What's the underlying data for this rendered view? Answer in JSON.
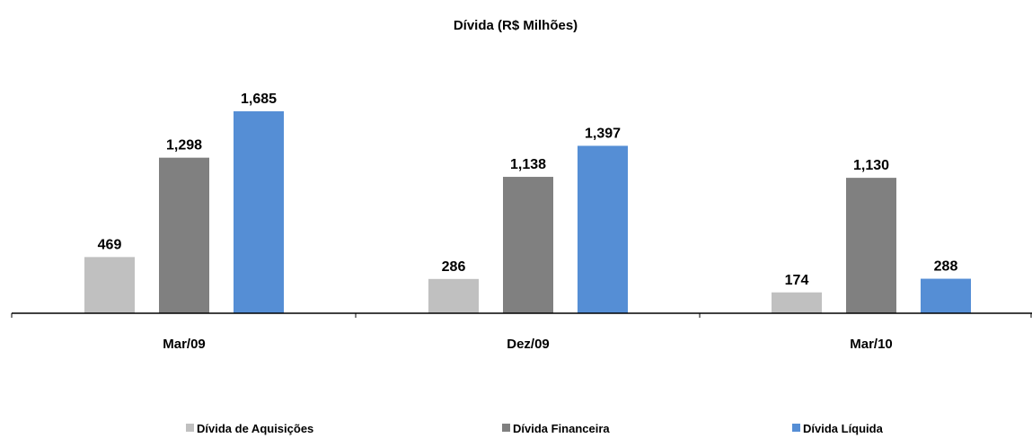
{
  "chart_data": {
    "type": "bar",
    "title": "Dívida (R$ Milhões)",
    "categories": [
      "Mar/09",
      "Dez/09",
      "Mar/10"
    ],
    "series": [
      {
        "name": "Dívida de Aquisições",
        "values": [
          469,
          286,
          174
        ],
        "labels": [
          "469",
          "286",
          "174"
        ],
        "color": "#c0c0c0"
      },
      {
        "name": "Dívida Financeira",
        "values": [
          1298,
          1138,
          1130
        ],
        "labels": [
          "1,298",
          "1,138",
          "1,130"
        ],
        "color": "#808080"
      },
      {
        "name": "Dívida Líquida",
        "values": [
          1685,
          1397,
          288
        ],
        "labels": [
          "1,685",
          "1,397",
          "288"
        ],
        "color": "#558ed5"
      }
    ],
    "ylim": [
      0,
      1685
    ],
    "grid": false,
    "legend": "bottom",
    "data_labels": true
  }
}
